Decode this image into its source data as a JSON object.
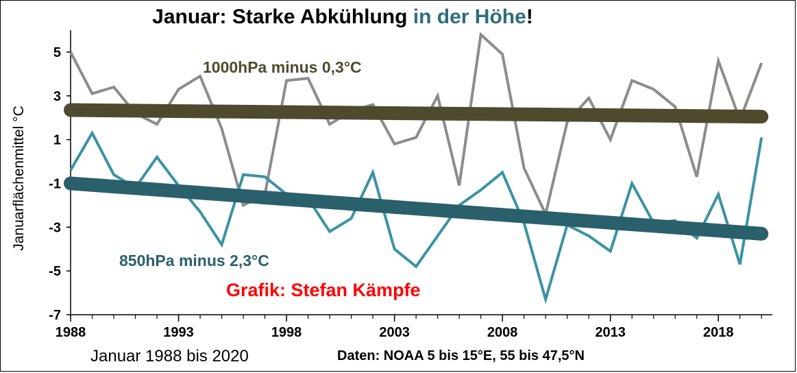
{
  "title": {
    "part1": "Januar: Starke Abkühlung ",
    "part2": "in der Höhe",
    "part3": "!"
  },
  "colors": {
    "accent": "#2f6e7c",
    "series1000": "#8c8c8c",
    "series850": "#3a93a3",
    "trend1000": "#4d4a2e",
    "trend850": "#2a5f6c",
    "credit": "#ff0000"
  },
  "footer": {
    "left": "Januar 1988 bis 2020",
    "right": "Daten: NOAA 5 bis 15°E, 55 bis 47,5°N"
  },
  "chart_data": {
    "type": "line",
    "ylabel": "Januarflächenmittel °C",
    "xlabel": "",
    "x": [
      1988,
      1989,
      1990,
      1991,
      1992,
      1993,
      1994,
      1995,
      1996,
      1997,
      1998,
      1999,
      2000,
      2001,
      2002,
      2003,
      2004,
      2005,
      2006,
      2007,
      2008,
      2009,
      2010,
      2011,
      2012,
      2013,
      2014,
      2015,
      2016,
      2017,
      2018,
      2019,
      2020
    ],
    "xlim": [
      1988,
      2020.5
    ],
    "ylim": [
      -7,
      6
    ],
    "x_ticks": [
      "1988",
      "1993",
      "1998",
      "2003",
      "2008",
      "2013",
      "2018"
    ],
    "y_ticks": [
      "5",
      "3",
      "1",
      "-1",
      "-3",
      "-5",
      "-7"
    ],
    "grid": false,
    "series": [
      {
        "key": "t1000",
        "values": [
          5.0,
          3.1,
          3.4,
          2.2,
          1.7,
          3.3,
          3.9,
          1.5,
          -2.0,
          -1.5,
          3.7,
          3.8,
          1.7,
          2.3,
          2.6,
          0.8,
          1.1,
          3.0,
          -1.1,
          5.8,
          4.9,
          -0.3,
          -2.4,
          1.8,
          2.9,
          1.0,
          3.7,
          3.3,
          2.5,
          -0.7,
          4.6,
          1.9,
          4.5
        ]
      },
      {
        "key": "t850",
        "values": [
          -0.4,
          1.3,
          -0.6,
          -1.2,
          0.2,
          -1.1,
          -2.3,
          -3.8,
          -0.6,
          -0.7,
          -1.5,
          -1.7,
          -3.2,
          -2.6,
          -0.5,
          -4.0,
          -4.8,
          -3.4,
          -2.0,
          -1.3,
          -0.5,
          -2.8,
          -6.3,
          -2.9,
          -3.4,
          -4.1,
          -1.0,
          -2.8,
          -2.7,
          -3.5,
          -1.5,
          -4.7,
          1.1
        ]
      }
    ],
    "trends": [
      {
        "key": "trend1000",
        "start": 2.35,
        "end": 2.05
      },
      {
        "key": "trend850",
        "start": -1.0,
        "end": -3.3
      }
    ],
    "annotations": [
      {
        "key": "a1000",
        "text": "1000hPa minus 0,3°C"
      },
      {
        "key": "a850",
        "text": "850hPa minus 2,3°C"
      },
      {
        "key": "credit",
        "text": "Grafik: Stefan Kämpfe"
      }
    ]
  }
}
